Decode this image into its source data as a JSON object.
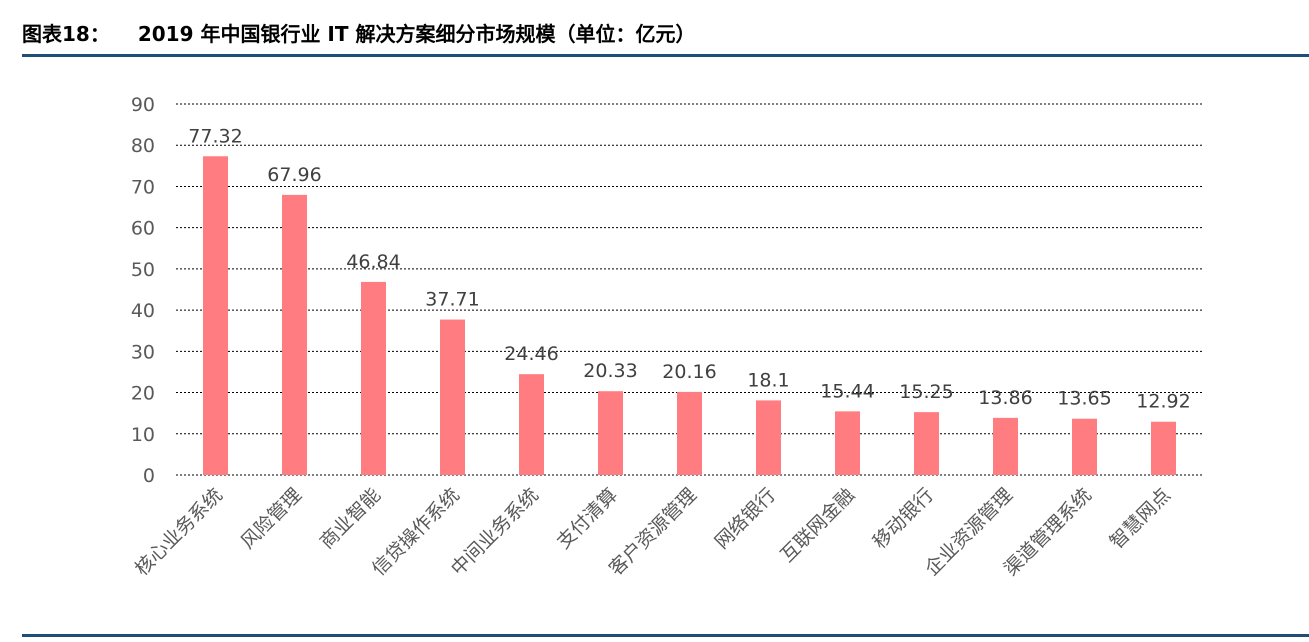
{
  "figure": {
    "label": "图表18：",
    "title": "2019 年中国银行业 IT 解决方案细分市场规模（单位：亿元）"
  },
  "colors": {
    "bar": "#ff7c80",
    "gridline": "#000000",
    "rule": "#1f4e79",
    "axis_text": "#595959",
    "data_label_text": "#404040"
  },
  "chart_data": {
    "type": "bar",
    "title": "",
    "xlabel": "",
    "ylabel": "",
    "ylim": [
      0,
      90
    ],
    "yticks": [
      0,
      10,
      20,
      30,
      40,
      50,
      60,
      70,
      80,
      90
    ],
    "grid": "horizontal dashed",
    "legend": "none",
    "categories": [
      "核心业务系统",
      "风险管理",
      "商业智能",
      "信贷操作系统",
      "中间业务系统",
      "支付清算",
      "客户资源管理",
      "网络银行",
      "互联网金融",
      "移动银行",
      "企业资源管理",
      "渠道管理系统",
      "智慧网点"
    ],
    "values": [
      77.32,
      67.96,
      46.84,
      37.71,
      24.46,
      20.33,
      20.16,
      18.1,
      15.44,
      15.25,
      13.86,
      13.65,
      12.92
    ],
    "data_labels": [
      "77.32",
      "67.96",
      "46.84",
      "37.71",
      "24.46",
      "20.33",
      "20.16",
      "18.1",
      "15.44",
      "15.25",
      "13.86",
      "13.65",
      "12.92"
    ]
  }
}
